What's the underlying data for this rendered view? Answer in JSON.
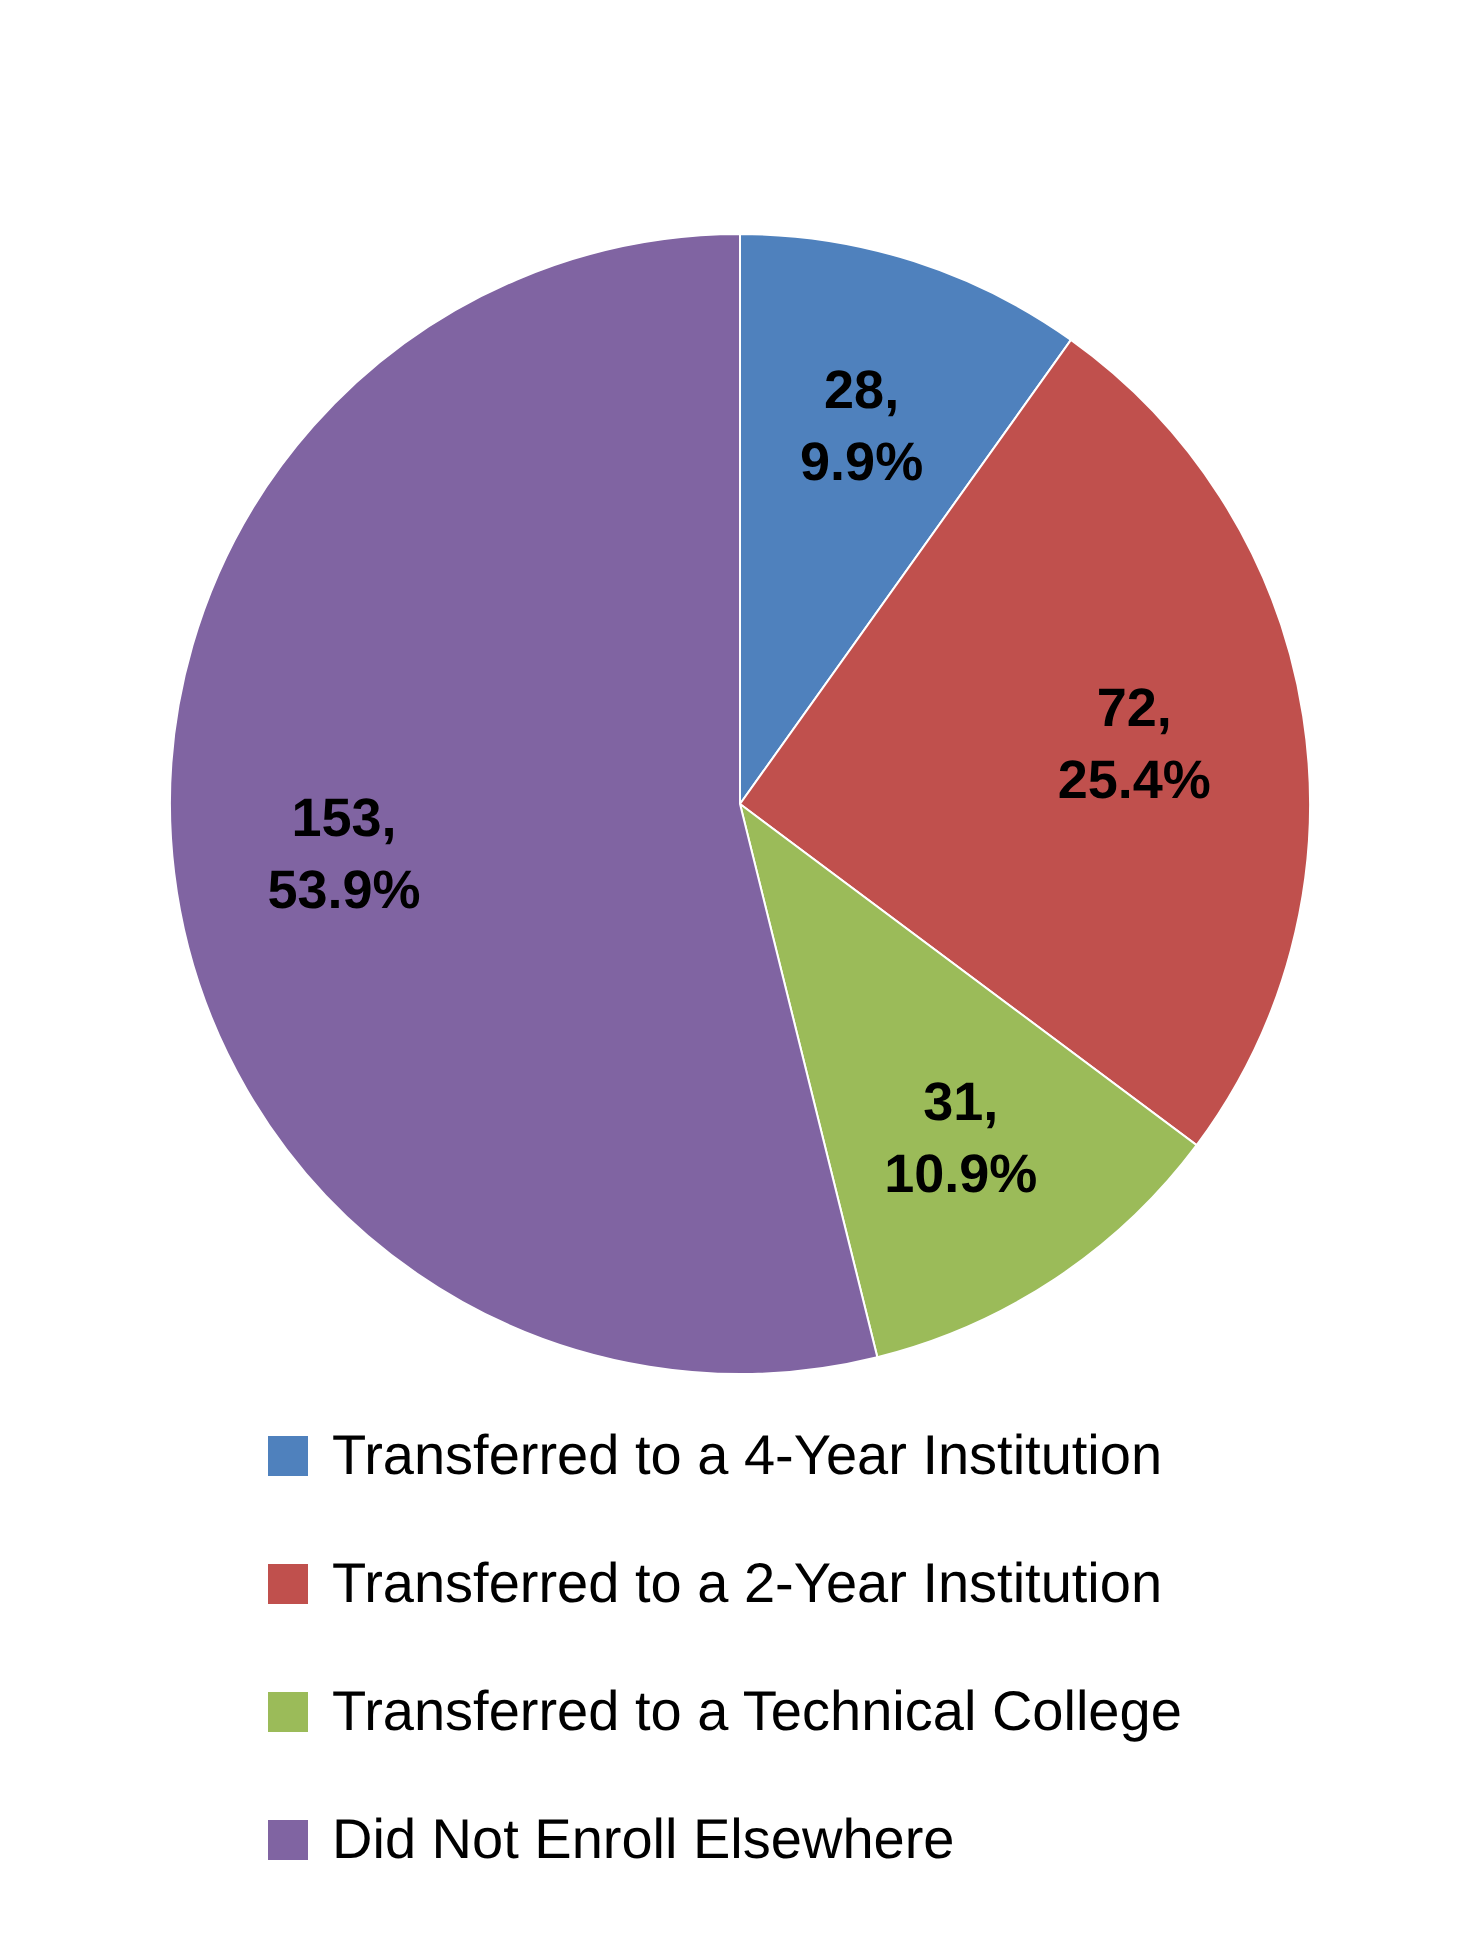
{
  "chart_data": {
    "type": "pie",
    "categories": [
      "Transferred to a 4-Year Institution",
      "Transferred to a 2-Year Institution",
      "Transferred to a Technical College",
      "Did Not Enroll Elsewhere"
    ],
    "values": [
      28,
      72,
      31,
      153
    ],
    "colors": [
      "#4f81bd",
      "#c0504d",
      "#9bbb59",
      "#8064a2"
    ],
    "value_labels": [
      "28, 9.9%",
      "72, 25.4%",
      "31, 10.9%",
      "153, 53.9%"
    ],
    "legend": "bottom"
  }
}
